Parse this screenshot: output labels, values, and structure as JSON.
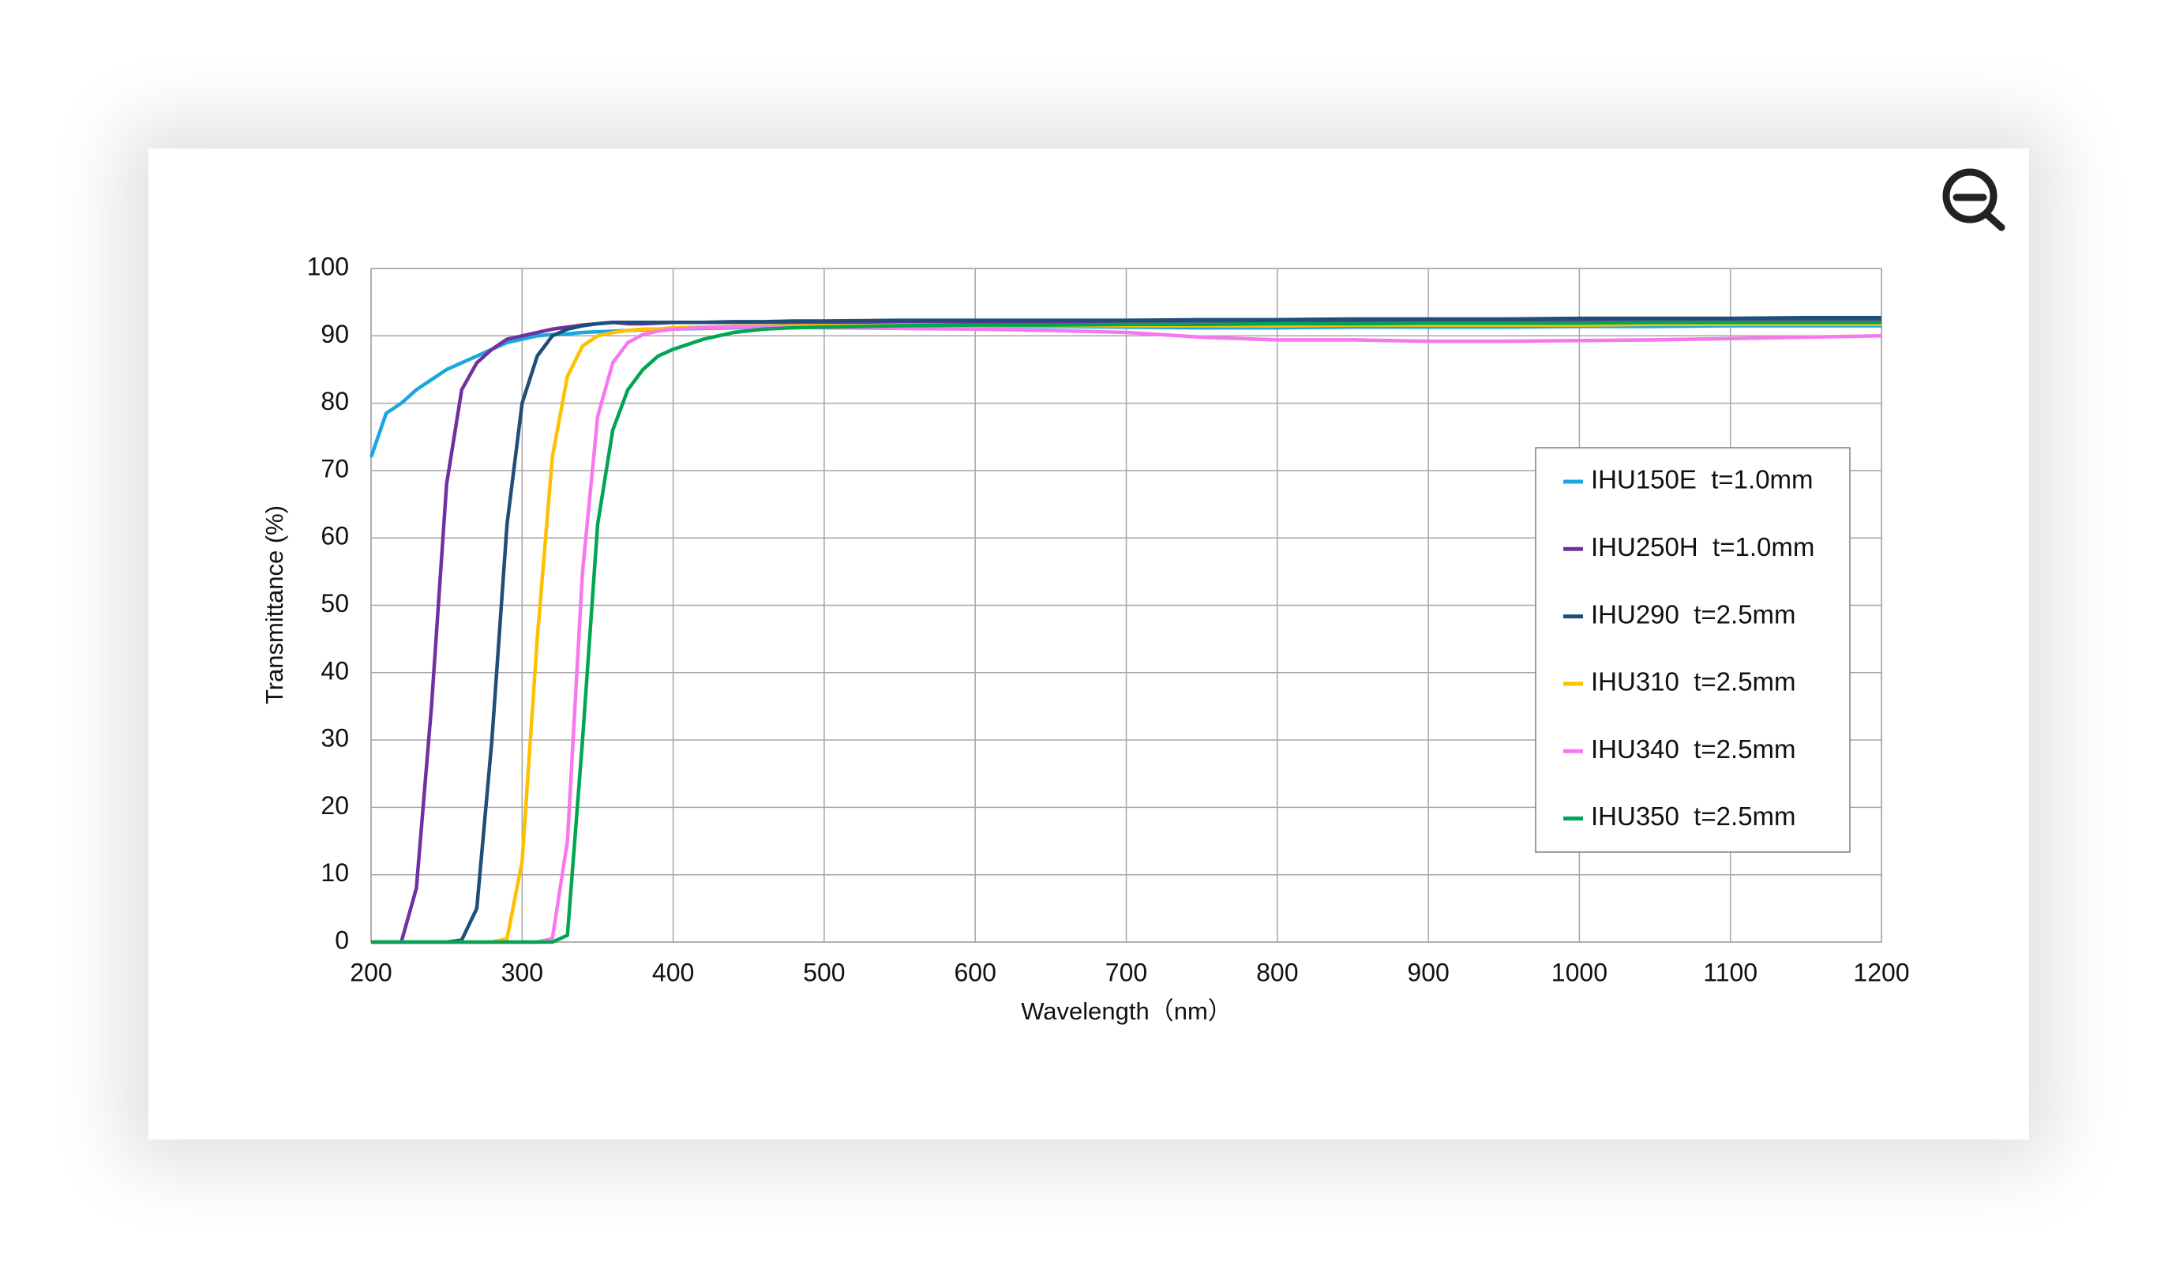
{
  "chart_data": {
    "type": "line",
    "x_label": "Wavelength（nm）",
    "y_label": "Transmittance (%)",
    "x": [
      200,
      210,
      220,
      230,
      240,
      250,
      260,
      270,
      280,
      290,
      300,
      310,
      320,
      330,
      340,
      350,
      360,
      370,
      380,
      390,
      400,
      420,
      440,
      460,
      480,
      500,
      550,
      600,
      650,
      700,
      750,
      800,
      850,
      900,
      950,
      1000,
      1050,
      1100,
      1150,
      1200
    ],
    "series": [
      {
        "name": "IHU150E  t=1.0mm",
        "color": "#1aa7df",
        "values": [
          72,
          78.5,
          80,
          82,
          83.5,
          85,
          86,
          87,
          88,
          89,
          89.5,
          90,
          90.2,
          90.3,
          90.5,
          90.6,
          90.7,
          90.8,
          90.9,
          91,
          91,
          91.1,
          91.2,
          91.3,
          91.4,
          91.5,
          91.5,
          91.5,
          91.4,
          91.3,
          91.2,
          91.2,
          91.3,
          91.3,
          91.3,
          91.4,
          91.4,
          91.5,
          91.5,
          91.5
        ]
      },
      {
        "name": "IHU250H  t=1.0mm",
        "color": "#7030a0",
        "values": [
          0,
          0,
          0,
          8,
          35,
          68,
          82,
          86,
          88,
          89.5,
          90,
          90.5,
          91,
          91.3,
          91.6,
          91.8,
          92,
          91.8,
          91.8,
          91.9,
          92,
          92,
          92,
          92,
          92,
          92,
          92.1,
          92.1,
          92.1,
          92.1,
          92.1,
          92.1,
          92.1,
          92.2,
          92.2,
          92.2,
          92.2,
          92.2,
          92.2,
          92.2
        ]
      },
      {
        "name": "IHU290  t=2.5mm",
        "color": "#1f4e79",
        "values": [
          0,
          0,
          0,
          0,
          0,
          0,
          0.3,
          5,
          30,
          62,
          80,
          87,
          90,
          91,
          91.5,
          91.8,
          92,
          92,
          92,
          92,
          92,
          92,
          92.1,
          92.1,
          92.2,
          92.2,
          92.3,
          92.3,
          92.3,
          92.3,
          92.4,
          92.4,
          92.5,
          92.5,
          92.5,
          92.6,
          92.6,
          92.6,
          92.7,
          92.7
        ]
      },
      {
        "name": "IHU310  t=2.5mm",
        "color": "#ffc000",
        "values": [
          0,
          0,
          0,
          0,
          0,
          0,
          0,
          0,
          0,
          0.5,
          12,
          45,
          72,
          84,
          88.5,
          90,
          90.5,
          90.8,
          91,
          91,
          91.2,
          91.3,
          91.4,
          91.4,
          91.5,
          91.5,
          91.5,
          91.5,
          91.5,
          91.5,
          91.5,
          91.5,
          91.6,
          91.6,
          91.6,
          91.6,
          91.7,
          91.7,
          91.7,
          91.7
        ]
      },
      {
        "name": "IHU340  t=2.5mm",
        "color": "#f777ee",
        "values": [
          0,
          0,
          0,
          0,
          0,
          0,
          0,
          0,
          0,
          0,
          0,
          0,
          0.5,
          15,
          55,
          78,
          86,
          89,
          90.2,
          90.7,
          91,
          91.2,
          91.3,
          91.3,
          91.3,
          91.2,
          91.1,
          91,
          90.8,
          90.5,
          89.8,
          89.4,
          89.4,
          89.2,
          89.2,
          89.3,
          89.4,
          89.6,
          89.8,
          90
        ]
      },
      {
        "name": "IHU350  t=2.5mm",
        "color": "#00a651",
        "values": [
          0,
          0,
          0,
          0,
          0,
          0,
          0,
          0,
          0,
          0,
          0,
          0,
          0,
          1,
          30,
          62,
          76,
          82,
          85,
          87,
          88,
          89.5,
          90.5,
          91,
          91.2,
          91.3,
          91.5,
          91.6,
          91.6,
          91.7,
          91.7,
          91.8,
          91.8,
          91.9,
          91.9,
          91.9,
          92,
          92,
          92,
          92
        ]
      }
    ],
    "xlim": [
      200,
      1200
    ],
    "ylim": [
      0,
      100
    ],
    "xticks": [
      200,
      300,
      400,
      500,
      600,
      700,
      800,
      900,
      1000,
      1100,
      1200
    ],
    "yticks": [
      0,
      10,
      20,
      30,
      40,
      50,
      60,
      70,
      80,
      90,
      100
    ],
    "grid": true,
    "legend": "right"
  }
}
